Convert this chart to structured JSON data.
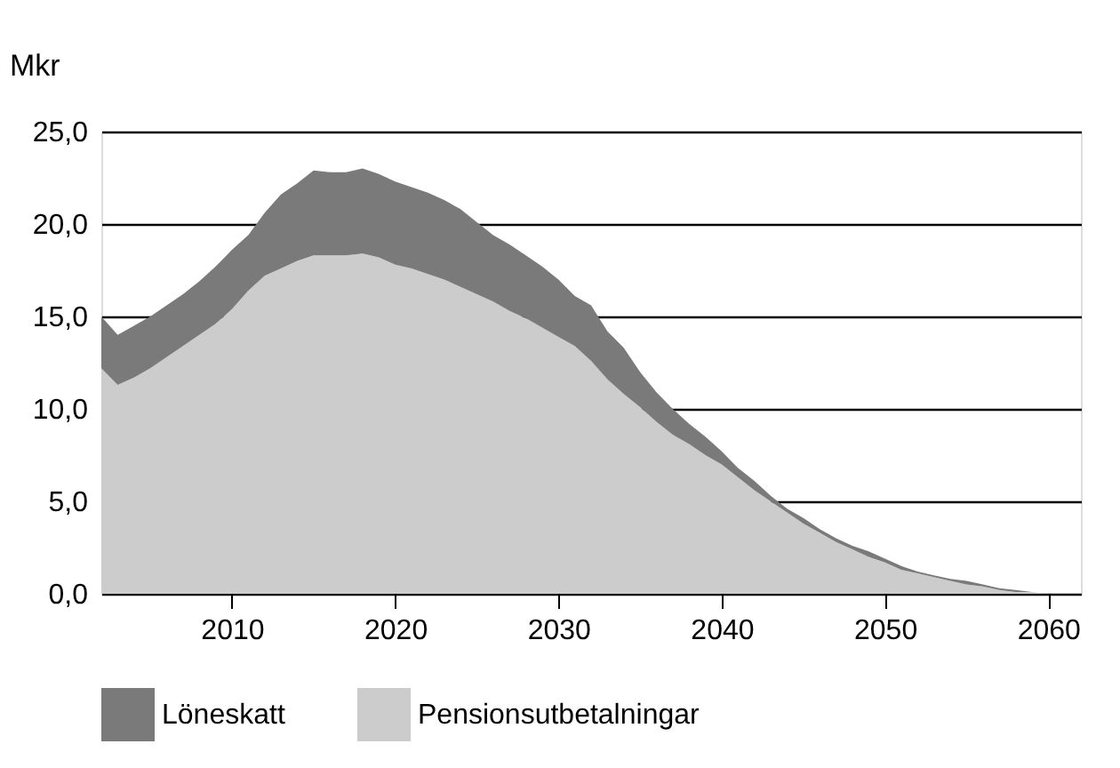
{
  "chart_data": {
    "type": "area",
    "stacked": true,
    "ylabel": "Mkr",
    "x": [
      2002,
      2003,
      2004,
      2005,
      2006,
      2007,
      2008,
      2009,
      2010,
      2011,
      2012,
      2013,
      2014,
      2015,
      2016,
      2017,
      2018,
      2019,
      2020,
      2021,
      2022,
      2023,
      2024,
      2025,
      2026,
      2027,
      2028,
      2029,
      2030,
      2031,
      2032,
      2033,
      2034,
      2035,
      2036,
      2037,
      2038,
      2039,
      2040,
      2041,
      2042,
      2043,
      2044,
      2045,
      2046,
      2047,
      2048,
      2049,
      2050,
      2051,
      2052,
      2053,
      2054,
      2055,
      2056,
      2057,
      2058,
      2059,
      2060
    ],
    "series": [
      {
        "name": "Pensionsutbetalningar",
        "color": "#cccccc",
        "values": [
          12.2,
          11.3,
          11.7,
          12.2,
          12.8,
          13.4,
          14.0,
          14.6,
          15.4,
          16.4,
          17.2,
          17.6,
          18.0,
          18.3,
          18.3,
          18.3,
          18.4,
          18.2,
          17.8,
          17.6,
          17.3,
          17.0,
          16.6,
          16.2,
          15.8,
          15.3,
          14.9,
          14.4,
          13.9,
          13.4,
          12.6,
          11.6,
          10.8,
          10.1,
          9.3,
          8.6,
          8.1,
          7.5,
          7.0,
          6.3,
          5.6,
          5.0,
          4.4,
          3.8,
          3.3,
          2.8,
          2.4,
          2.0,
          1.7,
          1.3,
          1.1,
          0.9,
          0.7,
          0.5,
          0.4,
          0.2,
          0.1,
          0.1,
          0.0
        ]
      },
      {
        "name": "Löneskatt",
        "color": "#7a7a7a",
        "values": [
          2.8,
          2.7,
          2.8,
          2.8,
          2.8,
          2.8,
          2.9,
          3.1,
          3.2,
          3.0,
          3.4,
          4.0,
          4.2,
          4.6,
          4.5,
          4.5,
          4.6,
          4.5,
          4.5,
          4.4,
          4.4,
          4.3,
          4.2,
          3.9,
          3.6,
          3.6,
          3.4,
          3.3,
          3.1,
          2.7,
          3.0,
          2.6,
          2.5,
          1.9,
          1.6,
          1.4,
          1.1,
          1.0,
          0.7,
          0.5,
          0.5,
          0.3,
          0.2,
          0.3,
          0.2,
          0.2,
          0.2,
          0.3,
          0.2,
          0.2,
          0.1,
          0.1,
          0.1,
          0.2,
          0.1,
          0.1,
          0.1,
          0.0,
          0.0
        ]
      }
    ],
    "xlim": [
      2002,
      2062
    ],
    "xticks": [
      2010,
      2020,
      2030,
      2040,
      2050,
      2060
    ],
    "ylim": [
      0,
      25
    ],
    "yticks": [
      {
        "value": 0,
        "label": "0,0"
      },
      {
        "value": 5,
        "label": "5,0"
      },
      {
        "value": 10,
        "label": "10,0"
      },
      {
        "value": 15,
        "label": "15,0"
      },
      {
        "value": 20,
        "label": "20,0"
      },
      {
        "value": 25,
        "label": "25,0"
      }
    ],
    "grid": "y",
    "legend": "bottom left"
  }
}
